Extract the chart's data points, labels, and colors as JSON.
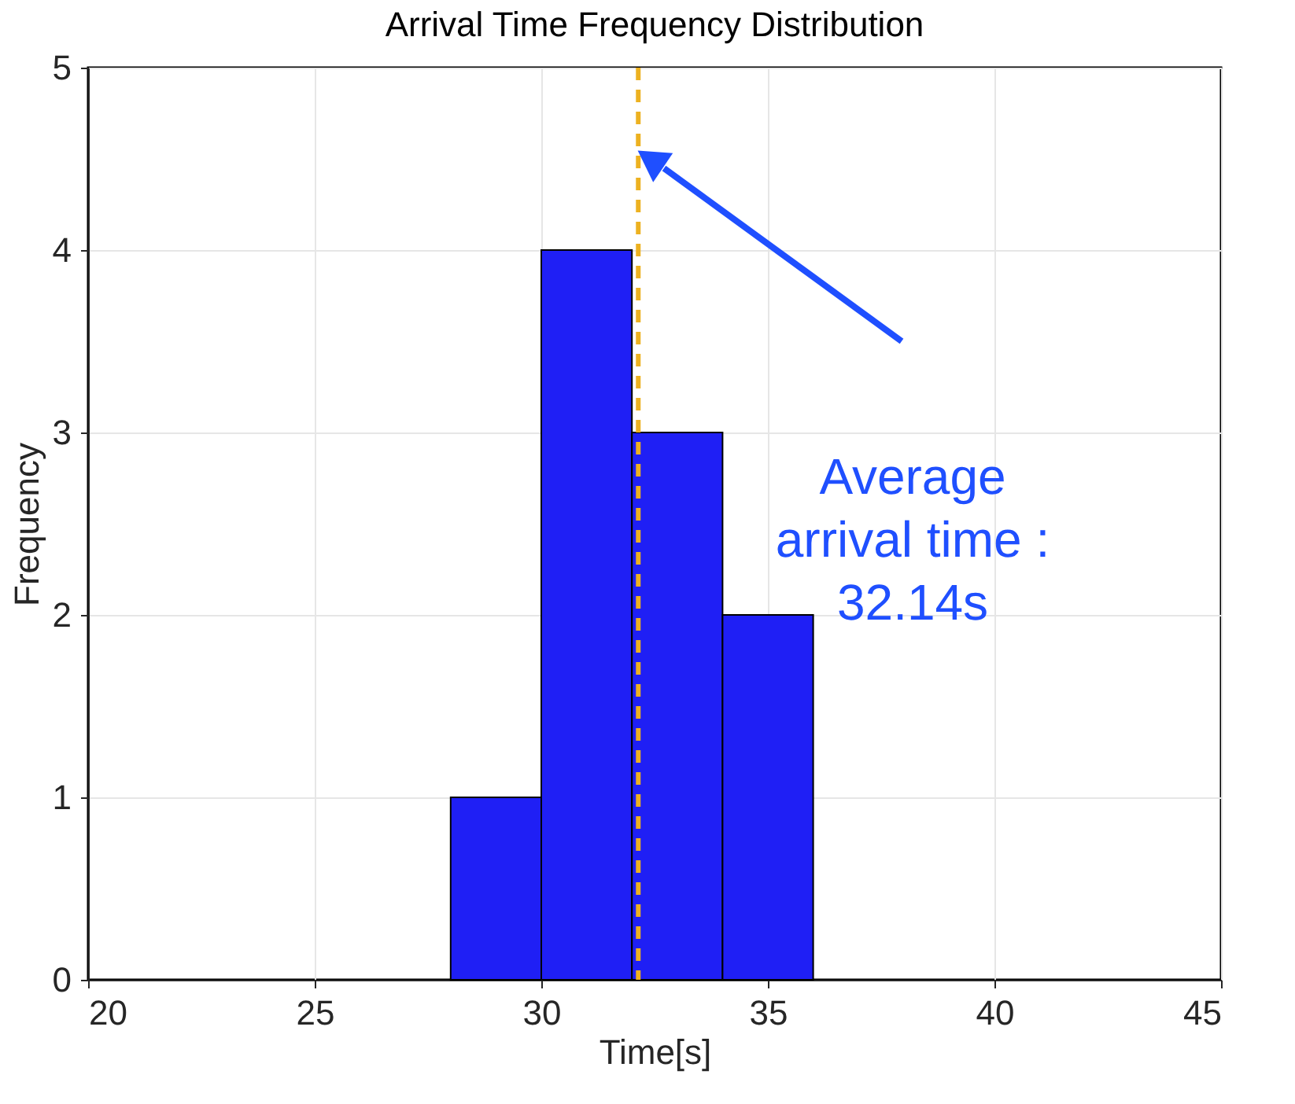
{
  "chart_data": {
    "type": "histogram",
    "title": "Arrival Time Frequency Distribution",
    "xlabel": "Time[s]",
    "ylabel": "Frequency",
    "bins": [
      28,
      30,
      32,
      34,
      36
    ],
    "values": [
      1,
      4,
      3,
      2
    ],
    "color": "#1f1ff5",
    "xlim": [
      20,
      45
    ],
    "xticks": [
      20,
      25,
      30,
      35,
      40,
      45
    ],
    "ylim": [
      0,
      5
    ],
    "yticks": [
      0,
      1,
      2,
      3,
      4,
      5
    ],
    "grid": true,
    "ref_lines": [
      {
        "axis": "x",
        "value": 32.14,
        "color": "#edb120",
        "line_style": "dashed"
      }
    ],
    "annotations": [
      "Average\narrival time :\n32.14s"
    ]
  }
}
